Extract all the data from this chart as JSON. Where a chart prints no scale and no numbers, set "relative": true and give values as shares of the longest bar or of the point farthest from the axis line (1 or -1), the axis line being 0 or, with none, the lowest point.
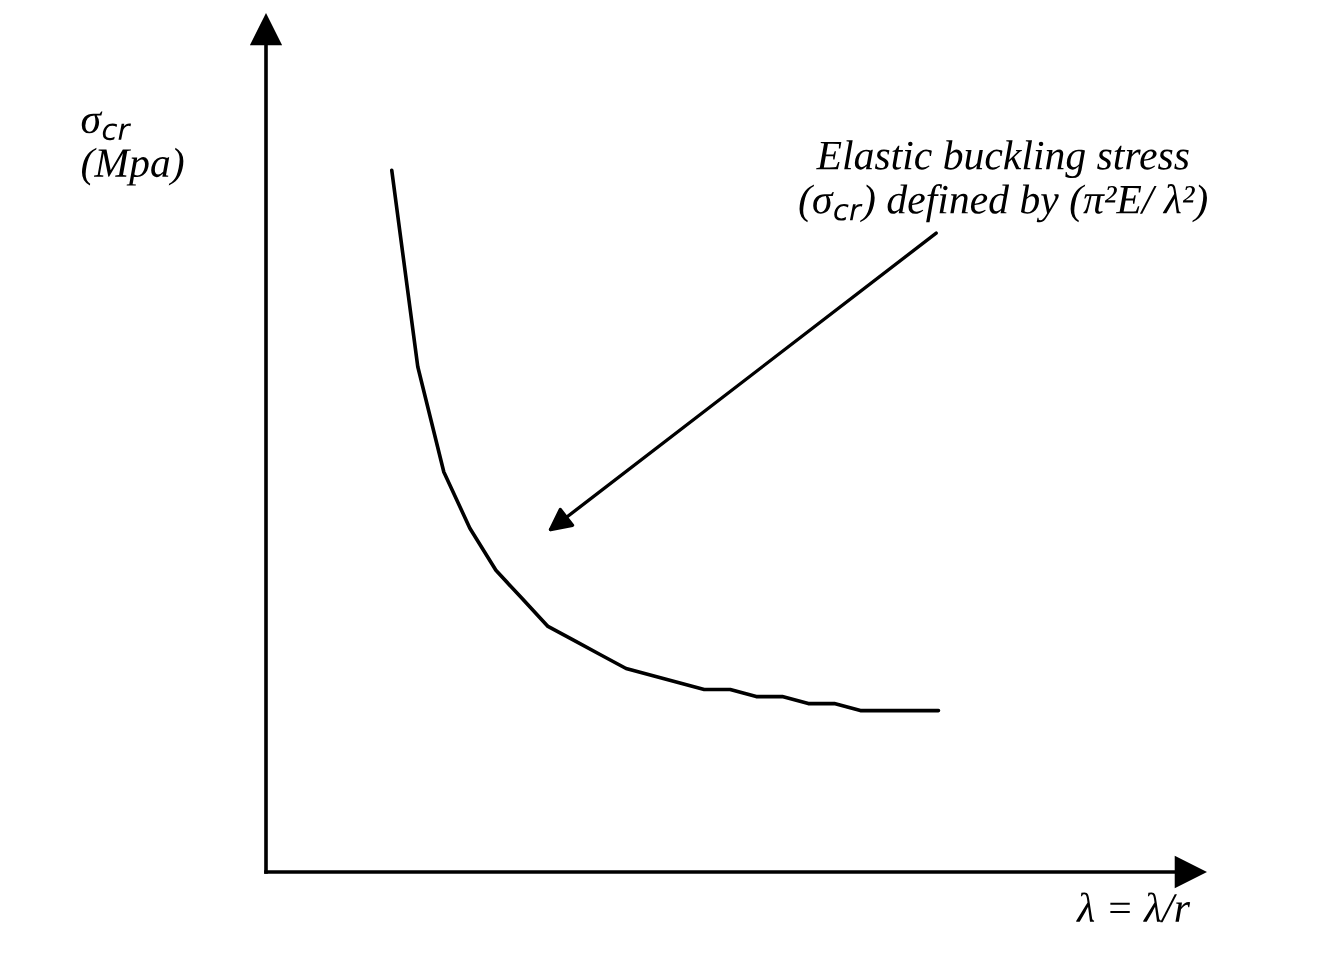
{
  "chart_data": {
    "type": "line",
    "relative": true,
    "ylabel": "σ$_{cr}$\n(Mpa)",
    "xlabel": "λ = λ/r",
    "categories": [
      null,
      null,
      null,
      null,
      null,
      null,
      null,
      null,
      null,
      null,
      null,
      null,
      null,
      null,
      null,
      null,
      null,
      null,
      null,
      null,
      null,
      null
    ],
    "series": [
      {
        "color": "#000000",
        "values": [
          1.0,
          0.72,
          0.57,
          0.49,
          0.43,
          0.39,
          0.35,
          0.33,
          0.31,
          0.29,
          0.28,
          0.27,
          0.26,
          0.26,
          0.25,
          0.25,
          0.24,
          0.24,
          0.23,
          0.23,
          0.23,
          0.23
        ]
      }
    ],
    "annotations": [
      "Elastic buckling stress\n(σ$_{cr}$) defined by (π²E/ λ²)"
    ],
    "grid": false,
    "legend": false,
    "marker": "none",
    "line_style": "solid"
  }
}
